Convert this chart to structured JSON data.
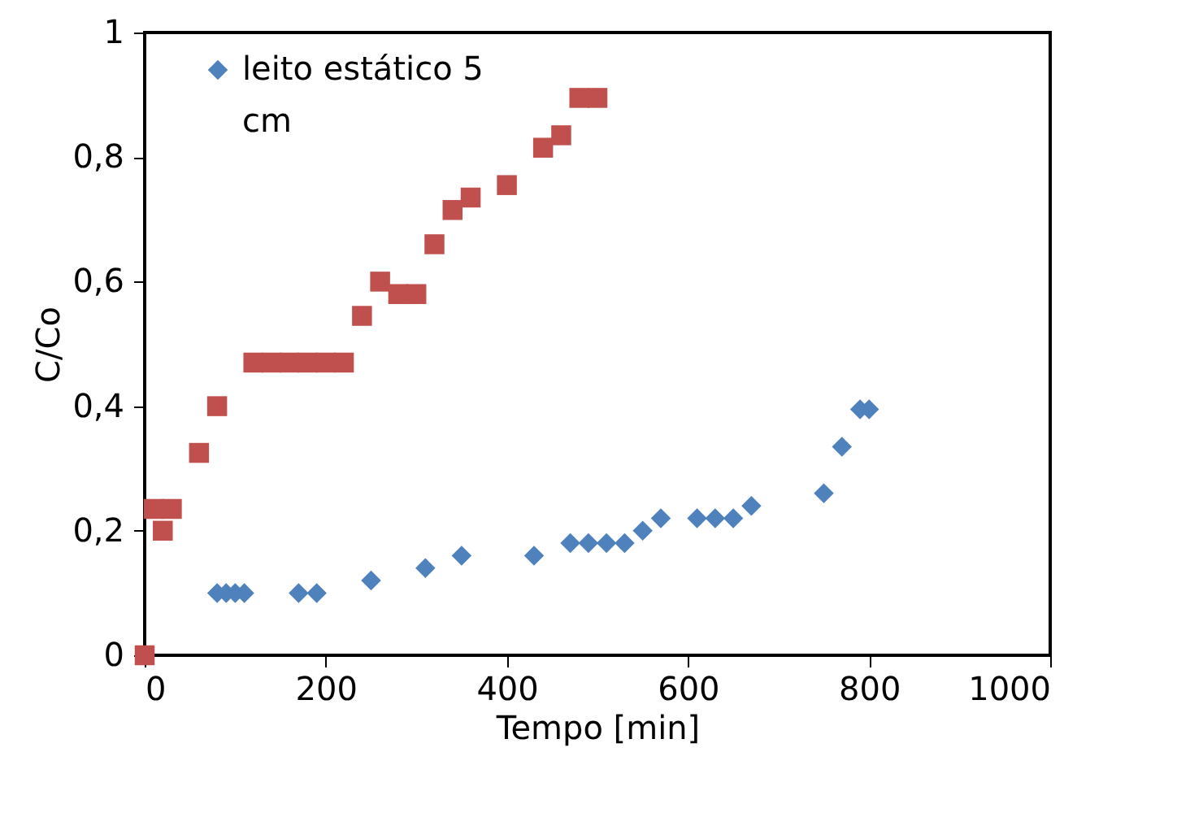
{
  "chart_data": {
    "type": "scatter",
    "xlabel": "Tempo [min]",
    "ylabel": "C/Co",
    "xlim": [
      0,
      1000
    ],
    "xticks": [
      0,
      200,
      400,
      600,
      800,
      1000
    ],
    "ylim": [
      0,
      1
    ],
    "yticks": [
      0,
      {
        "value": 0.2,
        "label": "0,2"
      },
      {
        "value": 0.4,
        "label": "0,4"
      },
      {
        "value": 0.6,
        "label": "0,6"
      },
      {
        "value": 0.8,
        "label": "0,8"
      },
      1
    ],
    "grid": false,
    "legend": "top left",
    "series": [
      {
        "name": "leito estático 5 cm",
        "color": "#4f81bd",
        "marker": "diamond",
        "x": [
          80,
          90,
          100,
          110,
          170,
          190,
          250,
          310,
          350,
          430,
          470,
          490,
          510,
          530,
          550,
          570,
          610,
          630,
          650,
          670,
          750,
          770,
          790,
          800
        ],
        "values": [
          0.1,
          0.1,
          0.1,
          0.1,
          0.1,
          0.1,
          0.12,
          0.14,
          0.16,
          0.16,
          0.18,
          0.18,
          0.18,
          0.18,
          0.2,
          0.22,
          0.22,
          0.22,
          0.22,
          0.24,
          0.26,
          0.335,
          0.395,
          0.395
        ]
      },
      {
        "color": "#c0504d",
        "marker": "square",
        "x": [
          0,
          10,
          20,
          30,
          60,
          80,
          120,
          140,
          160,
          180,
          200,
          220,
          240,
          260,
          280,
          300,
          320,
          340,
          360,
          400,
          440,
          460,
          480,
          500
        ],
        "values": [
          0,
          0.235,
          0.2,
          0.235,
          0.325,
          0.4,
          0.47,
          0.47,
          0.47,
          0.47,
          0.47,
          0.47,
          0.545,
          0.6,
          0.58,
          0.58,
          0.66,
          0.715,
          0.735,
          0.755,
          0.815,
          0.835,
          0.895,
          0.895
        ]
      }
    ]
  }
}
